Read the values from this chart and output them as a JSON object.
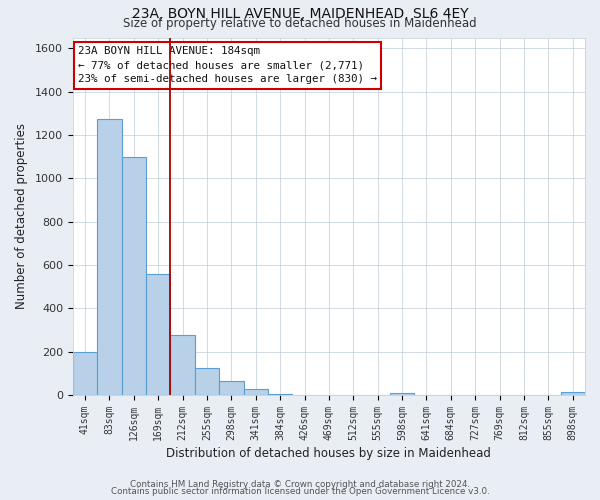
{
  "title": "23A, BOYN HILL AVENUE, MAIDENHEAD, SL6 4EY",
  "subtitle": "Size of property relative to detached houses in Maidenhead",
  "xlabel": "Distribution of detached houses by size in Maidenhead",
  "ylabel": "Number of detached properties",
  "bar_labels": [
    "41sqm",
    "83sqm",
    "126sqm",
    "169sqm",
    "212sqm",
    "255sqm",
    "298sqm",
    "341sqm",
    "384sqm",
    "426sqm",
    "469sqm",
    "512sqm",
    "555sqm",
    "598sqm",
    "641sqm",
    "684sqm",
    "727sqm",
    "769sqm",
    "812sqm",
    "855sqm",
    "898sqm"
  ],
  "bar_values": [
    200,
    1275,
    1100,
    560,
    275,
    125,
    65,
    30,
    5,
    0,
    0,
    0,
    0,
    8,
    0,
    0,
    0,
    0,
    0,
    0,
    15
  ],
  "bar_color": "#b8d0e8",
  "bar_edgecolor": "#5a9fd4",
  "ylim": [
    0,
    1650
  ],
  "yticks": [
    0,
    200,
    400,
    600,
    800,
    1000,
    1200,
    1400,
    1600
  ],
  "vline_x": 3.5,
  "vline_color": "#aa0000",
  "ann_line1": "23A BOYN HILL AVENUE: 184sqm",
  "ann_line2": "← 77% of detached houses are smaller (2,771)",
  "ann_line3": "23% of semi-detached houses are larger (830) →",
  "footer_line1": "Contains HM Land Registry data © Crown copyright and database right 2024.",
  "footer_line2": "Contains public sector information licensed under the Open Government Licence v3.0.",
  "background_color": "#e8eef4",
  "plot_background": "#ffffff",
  "grid_color": "#c0ccd8"
}
